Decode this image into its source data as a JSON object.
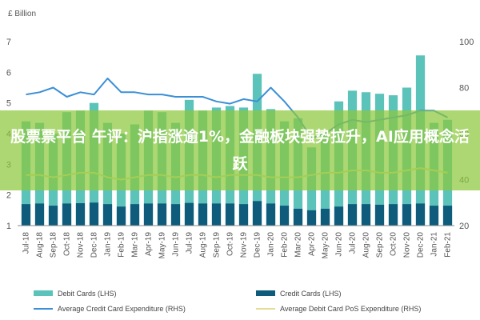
{
  "chart_data": {
    "type": "bar",
    "unit_label": "£ Billion",
    "left_axis_ticks": [
      "1",
      "2",
      "3",
      "4",
      "5",
      "6",
      "7"
    ],
    "right_axis_ticks": [
      "20",
      "40",
      "60",
      "80",
      "100"
    ],
    "ylim": [
      1,
      7
    ],
    "y2lim": [
      20,
      100
    ],
    "categories": [
      "Jul-18",
      "Aug-18",
      "Sep-18",
      "Oct-18",
      "Nov-18",
      "Dec-18",
      "Jan-19",
      "Feb-19",
      "Mar-19",
      "Apr-19",
      "May-19",
      "Jun-19",
      "Jul-19",
      "Aug-19",
      "Sep-19",
      "Oct-19",
      "Nov-19",
      "Dec-19",
      "Jan-20",
      "Feb-20",
      "Mar-20",
      "Apr-20",
      "May-20",
      "Jun-20",
      "Jul-20",
      "Aug-20",
      "Sep-20",
      "Oct-20",
      "Nov-20",
      "Dec-20",
      "Jan-21",
      "Feb-21"
    ],
    "x_tick_labels": [
      "Jul-18",
      "Aug-18",
      "Sep-18",
      "Oct-18",
      "Nov-18",
      "Dec-18",
      "Jan-19",
      "Feb-19",
      "Mar-19",
      "Apr-19",
      "May-19",
      "Jun-19",
      "Jul-19",
      "Aug-19",
      "Sep-19",
      "Oct-19",
      "Nov-19",
      "Dec-19",
      "Jan-20",
      "Feb-20",
      "Mar-20",
      "Apr-20",
      "May-20",
      "Jun-20",
      "Jul-20",
      "Aug-20",
      "Sep-20",
      "Oct-20",
      "Nov-20",
      "Dec-20",
      "Jan-21",
      "Feb-21"
    ],
    "series": [
      {
        "name": "Debit Cards (LHS)",
        "type": "bar",
        "axis": "left",
        "color": "#5cc3bb",
        "values": [
          4.4,
          4.35,
          4.0,
          4.7,
          4.75,
          5.0,
          4.35,
          4.0,
          4.3,
          4.75,
          4.7,
          4.35,
          5.1,
          4.75,
          4.85,
          4.9,
          4.85,
          5.95,
          4.8,
          4.4,
          4.5,
          3.55,
          3.95,
          5.05,
          5.4,
          5.35,
          5.3,
          5.25,
          5.5,
          6.55,
          4.35,
          4.45
        ]
      },
      {
        "name": "Credit Cards (LHS)",
        "type": "bar",
        "axis": "left",
        "color": "#0f5b7b",
        "values": [
          1.7,
          1.72,
          1.65,
          1.72,
          1.73,
          1.75,
          1.7,
          1.62,
          1.7,
          1.72,
          1.72,
          1.7,
          1.74,
          1.72,
          1.72,
          1.72,
          1.7,
          1.8,
          1.72,
          1.65,
          1.55,
          1.5,
          1.55,
          1.62,
          1.7,
          1.7,
          1.68,
          1.7,
          1.7,
          1.72,
          1.65,
          1.65
        ]
      },
      {
        "name": "Average Credit Card Expenditure (RHS)",
        "type": "line",
        "axis": "right",
        "color": "#3c8fd6",
        "values": [
          77,
          78,
          80,
          76,
          78,
          77,
          84,
          78,
          78,
          77,
          77,
          76,
          76,
          76,
          74,
          73,
          75,
          74,
          80,
          74,
          67,
          58,
          60,
          64,
          66,
          65,
          66,
          67,
          68,
          70,
          70,
          67
        ]
      },
      {
        "name": "Average Debit Card PoS Expenditure (RHS)",
        "type": "line",
        "axis": "right",
        "color": "#e2de96",
        "values": [
          42,
          42,
          41,
          42,
          43,
          43,
          41,
          40,
          41,
          42,
          42,
          41,
          42,
          42,
          41,
          42,
          42,
          42,
          41,
          41,
          41,
          42,
          43,
          43,
          44,
          44,
          43,
          43,
          44,
          45,
          44,
          43
        ]
      }
    ],
    "legend": {
      "placement": "bottom"
    },
    "grid": false
  },
  "banner": {
    "text": "股票票平台 午评：沪指涨逾1%，金融板块强势拉升，AI应用概念活跃"
  }
}
